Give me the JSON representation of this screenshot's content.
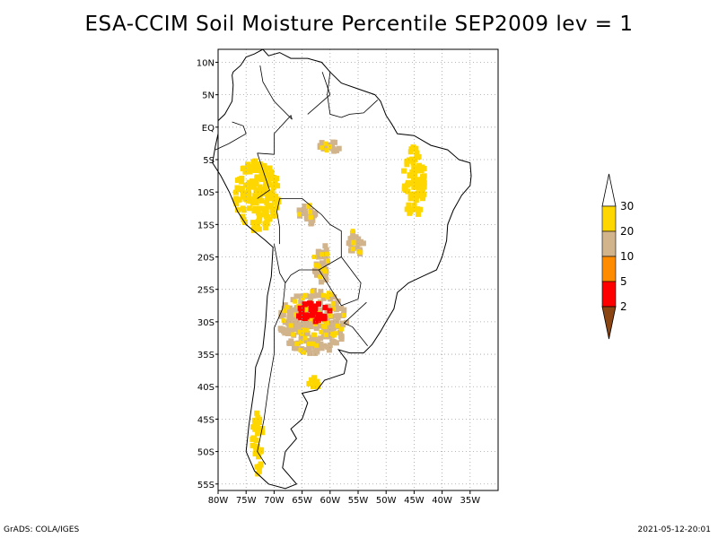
{
  "title": "ESA-CCIM Soil Moisture Percentile SEP2009 lev = 1",
  "footer": {
    "left": "GrADS: COLA/IGES",
    "right": "2021-05-12-20:01"
  },
  "map": {
    "region": "South America",
    "lon_range": [
      -80,
      -30
    ],
    "lat_range": [
      -56,
      12
    ],
    "grid": true,
    "lon_ticks": [
      {
        "value": -80,
        "label": "80W"
      },
      {
        "value": -75,
        "label": "75W"
      },
      {
        "value": -70,
        "label": "70W"
      },
      {
        "value": -65,
        "label": "65W"
      },
      {
        "value": -60,
        "label": "60W"
      },
      {
        "value": -55,
        "label": "55W"
      },
      {
        "value": -50,
        "label": "50W"
      },
      {
        "value": -45,
        "label": "45W"
      },
      {
        "value": -40,
        "label": "40W"
      },
      {
        "value": -35,
        "label": "35W"
      }
    ],
    "lat_ticks": [
      {
        "value": 10,
        "label": "10N"
      },
      {
        "value": 5,
        "label": "5N"
      },
      {
        "value": 0,
        "label": "EQ"
      },
      {
        "value": -5,
        "label": "5S"
      },
      {
        "value": -10,
        "label": "10S"
      },
      {
        "value": -15,
        "label": "15S"
      },
      {
        "value": -20,
        "label": "20S"
      },
      {
        "value": -25,
        "label": "25S"
      },
      {
        "value": -30,
        "label": "30S"
      },
      {
        "value": -35,
        "label": "35S"
      },
      {
        "value": -40,
        "label": "40S"
      },
      {
        "value": -45,
        "label": "45S"
      },
      {
        "value": -50,
        "label": "50S"
      },
      {
        "value": -55,
        "label": "55S"
      }
    ]
  },
  "legend": {
    "bins": [
      {
        "range": "<2",
        "color": "#8b4513"
      },
      {
        "range": "2-5",
        "color": "#ff0000"
      },
      {
        "range": "5-10",
        "color": "#ff8c00"
      },
      {
        "range": "10-20",
        "color": "#d2b48c"
      },
      {
        "range": "20-30",
        "color": "#ffd700"
      },
      {
        "range": ">30",
        "color": "#ffffff"
      }
    ],
    "labels": [
      "2",
      "5",
      "10",
      "20",
      "30"
    ]
  },
  "colors": {
    "pct_2_5": "#ff0000",
    "pct_5_10": "#ff8c00",
    "pct_10_20": "#d2b48c",
    "pct_20_30": "#ffd700",
    "pct_lt_2": "#8b4513",
    "grid": "#a0a0a0",
    "coast": "#000000"
  },
  "anomaly_regions": [
    {
      "name": "central-argentina",
      "category": "10-20",
      "lon": [
        -69,
        -57
      ],
      "lat": [
        -35,
        -25
      ]
    },
    {
      "name": "central-argentina-core",
      "category": "2-5",
      "lon": [
        -66,
        -60
      ],
      "lat": [
        -30,
        -27
      ]
    },
    {
      "name": "andes-peru",
      "category": "20-30",
      "lon": [
        -77,
        -69
      ],
      "lat": [
        -16,
        -5
      ]
    },
    {
      "name": "bolivia",
      "category": "10-20",
      "lon": [
        -66,
        -62
      ],
      "lat": [
        -15,
        -12
      ]
    },
    {
      "name": "ne-brazil",
      "category": "20-30",
      "lon": [
        -47,
        -43
      ],
      "lat": [
        -14,
        -3
      ]
    },
    {
      "name": "paraguay-chaco",
      "category": "10-20",
      "lon": [
        -63,
        -60
      ],
      "lat": [
        -24,
        -18
      ]
    },
    {
      "name": "mato-grosso-sul",
      "category": "10-20",
      "lon": [
        -57,
        -54
      ],
      "lat": [
        -20,
        -16
      ]
    },
    {
      "name": "northern-brazil",
      "category": "10-20",
      "lon": [
        -62,
        -58
      ],
      "lat": [
        -4,
        -2
      ]
    },
    {
      "name": "patagonia-coast",
      "category": "20-30",
      "lon": [
        -64,
        -62
      ],
      "lat": [
        -41,
        -38
      ]
    },
    {
      "name": "chile-south",
      "category": "20-30",
      "lon": [
        -74,
        -72
      ],
      "lat": [
        -54,
        -44
      ]
    }
  ]
}
